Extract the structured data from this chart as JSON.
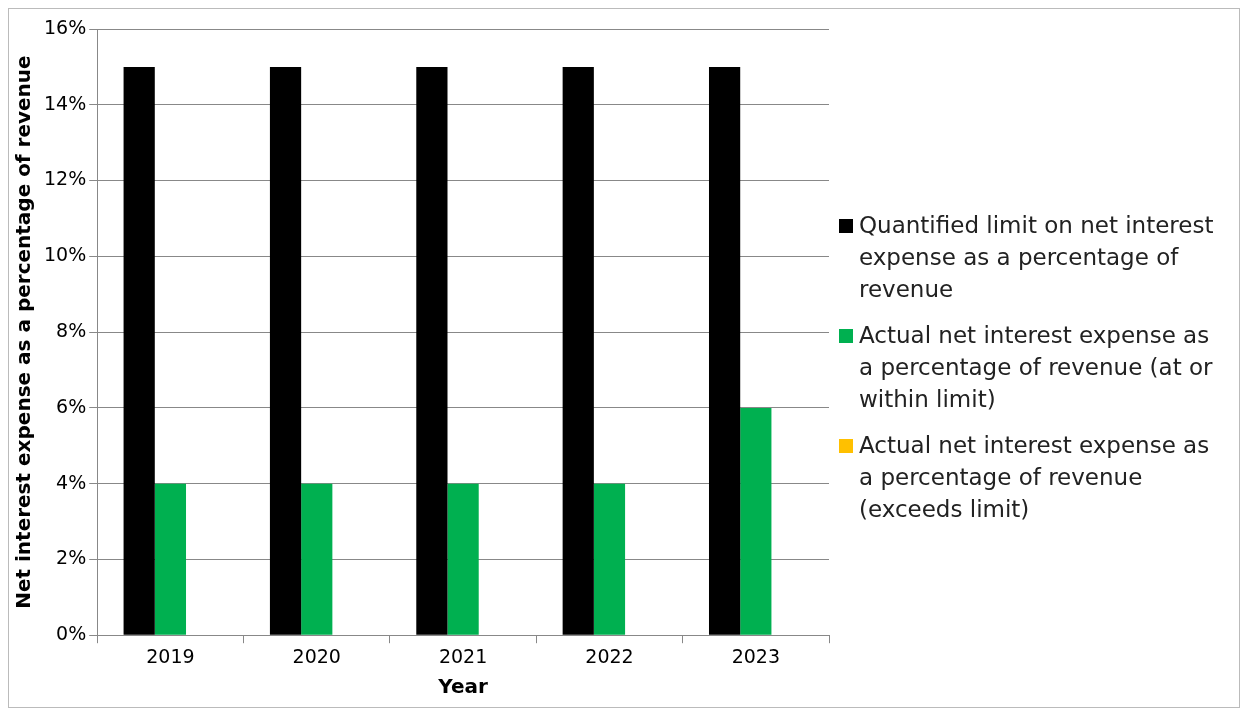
{
  "chart_data": {
    "type": "bar",
    "xlabel": "Year",
    "ylabel": "Net interest expense as a percentage of revenue",
    "categories": [
      "2019",
      "2020",
      "2021",
      "2022",
      "2023"
    ],
    "series": [
      {
        "name": "Quantified limit on net interest expense as a percentage of revenue",
        "color": "#000000",
        "values": [
          15,
          15,
          15,
          15,
          15
        ]
      },
      {
        "name": "Actual net interest expense as a percentage of revenue (at or within limit)",
        "color": "#00b050",
        "values": [
          4,
          4,
          4,
          4,
          6
        ]
      },
      {
        "name": "Actual net interest expense as a percentage of revenue (exceeds limit)",
        "color": "#ffc000",
        "values": [
          null,
          null,
          null,
          null,
          null
        ]
      }
    ],
    "ylim": [
      0,
      16
    ],
    "yticks": [
      {
        "value": 0,
        "label": "0%"
      },
      {
        "value": 2,
        "label": "2%"
      },
      {
        "value": 4,
        "label": "4%"
      },
      {
        "value": 6,
        "label": "6%"
      },
      {
        "value": 8,
        "label": "8%"
      },
      {
        "value": 10,
        "label": "10%"
      },
      {
        "value": 12,
        "label": "12%"
      },
      {
        "value": 14,
        "label": "14%"
      },
      {
        "value": 16,
        "label": "16%"
      }
    ],
    "grid": "y",
    "legend": "right"
  }
}
